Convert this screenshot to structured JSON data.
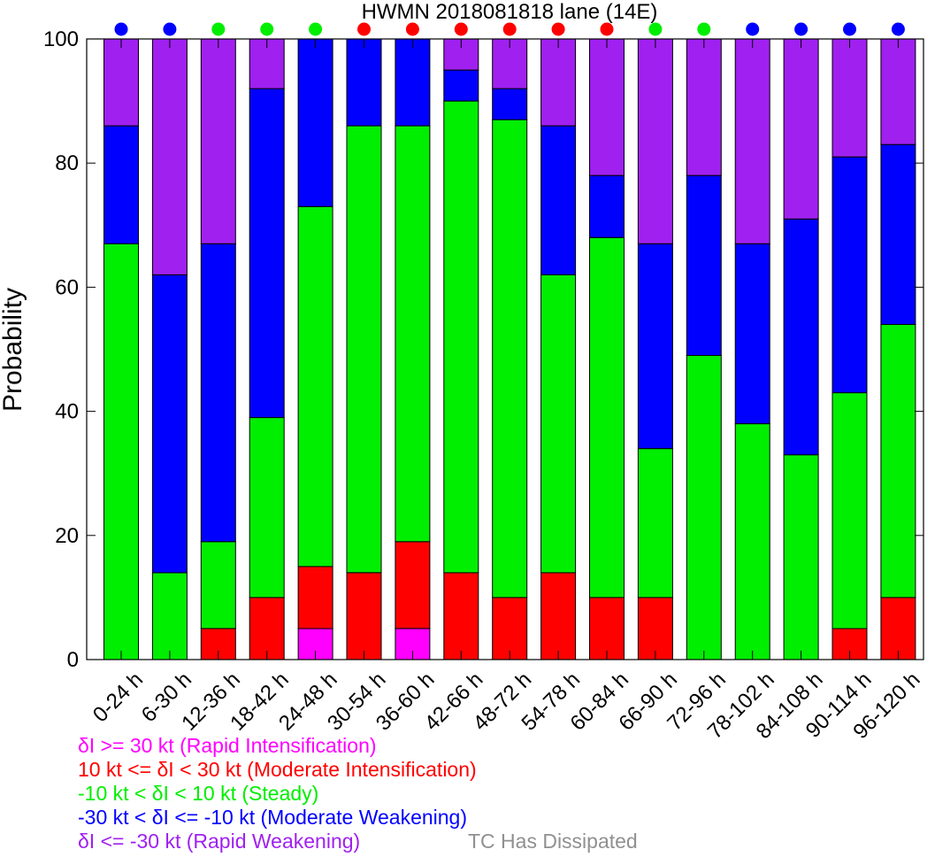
{
  "chart_data": {
    "type": "bar",
    "stacked": true,
    "title": "HWMN 2018081818 lane (14E)",
    "ylabel": "Probability",
    "xlabel": "",
    "ylim": [
      0,
      100
    ],
    "yticks": [
      0,
      20,
      40,
      60,
      80,
      100
    ],
    "categories": [
      "0-24 h",
      "6-30 h",
      "12-36 h",
      "18-42 h",
      "24-48 h",
      "30-54 h",
      "36-60 h",
      "42-66 h",
      "48-72 h",
      "54-78 h",
      "60-84 h",
      "66-90 h",
      "72-96 h",
      "78-102 h",
      "84-108 h",
      "90-114 h",
      "96-120 h"
    ],
    "series": [
      {
        "name": "δI >= 30 kt (Rapid Intensification)",
        "color": "#ff00ff",
        "values": [
          0,
          0,
          0,
          0,
          5,
          0,
          5,
          0,
          0,
          0,
          0,
          0,
          0,
          0,
          0,
          0,
          0
        ]
      },
      {
        "name": "10 kt <= δI < 30 kt (Moderate Intensification)",
        "color": "#ff0000",
        "values": [
          0,
          0,
          5,
          10,
          10,
          14,
          14,
          14,
          10,
          14,
          10,
          10,
          0,
          0,
          0,
          5,
          10
        ]
      },
      {
        "name": "-10 kt < δI < 10 kt (Steady)",
        "color": "#00ee00",
        "values": [
          67,
          14,
          14,
          29,
          58,
          72,
          67,
          76,
          77,
          48,
          58,
          24,
          49,
          38,
          33,
          38,
          44
        ]
      },
      {
        "name": "-30 kt < δI <= -10 kt (Moderate Weakening)",
        "color": "#0000ff",
        "values": [
          19,
          48,
          48,
          53,
          27,
          14,
          14,
          5,
          5,
          24,
          10,
          33,
          29,
          29,
          38,
          38,
          29
        ]
      },
      {
        "name": "δI <= -30 kt (Rapid Weakening)",
        "color": "#a020f0",
        "values": [
          14,
          38,
          33,
          8,
          0,
          0,
          0,
          5,
          8,
          14,
          22,
          33,
          22,
          33,
          29,
          19,
          17
        ]
      }
    ],
    "category_indicators": [
      "#0000ff",
      "#0000ff",
      "#00ee00",
      "#00ee00",
      "#00ee00",
      "#ff0000",
      "#ff0000",
      "#ff0000",
      "#ff0000",
      "#ff0000",
      "#ff0000",
      "#00ee00",
      "#00ee00",
      "#0000ff",
      "#0000ff",
      "#0000ff",
      "#0000ff"
    ],
    "grid": false
  },
  "legend": {
    "items": [
      {
        "label": "δI >= 30 kt (Rapid Intensification)",
        "color": "#ff00ff"
      },
      {
        "label": "10 kt <= δI < 30 kt (Moderate Intensification)",
        "color": "#ff0000"
      },
      {
        "label": "-10 kt < δI < 10 kt (Steady)",
        "color": "#00ee00"
      },
      {
        "label": "-30 kt < δI <= -10 kt (Moderate Weakening)",
        "color": "#0000ff"
      },
      {
        "label": "δI <= -30 kt (Rapid Weakening)",
        "color": "#a020f0"
      }
    ],
    "dissipated_label": "TC Has Dissipated",
    "dissipated_color": "#909090"
  }
}
